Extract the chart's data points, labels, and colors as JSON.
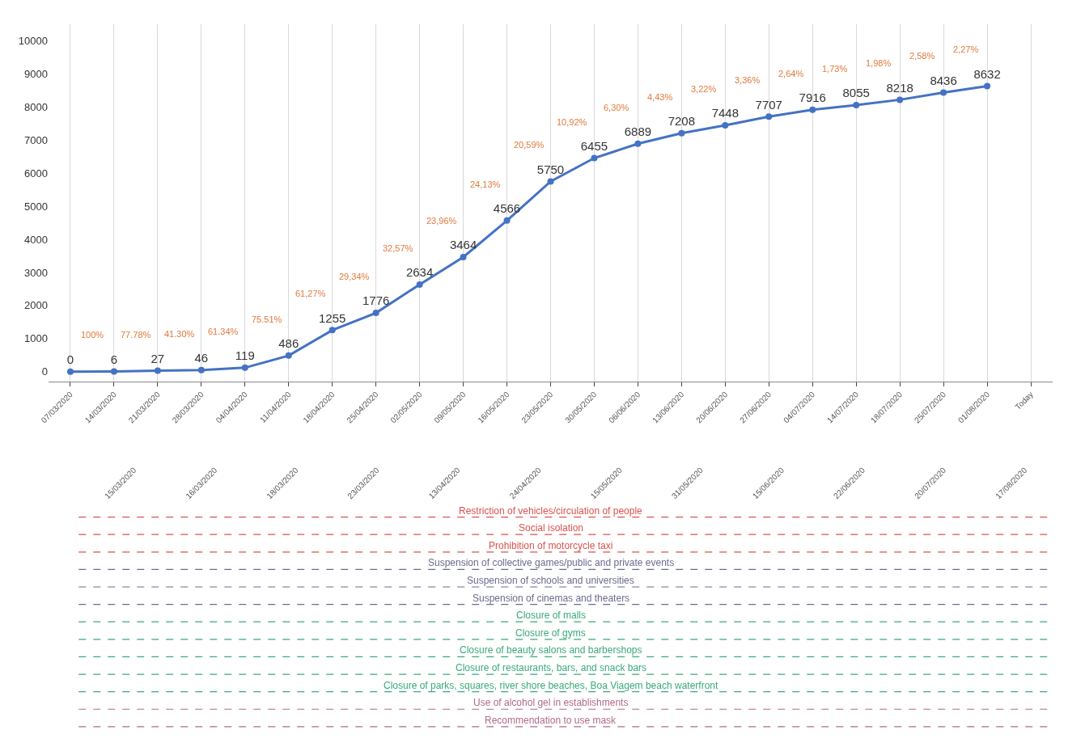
{
  "chart_data": [
    {
      "type": "line",
      "categories": [
        "07/03/2020",
        "14/03/2020",
        "21/03/2020",
        "28/03/2020",
        "04/04/2020",
        "11/04/2020",
        "18/04/2020",
        "25/04/2020",
        "02/05/2020",
        "09/05/2020",
        "16/05/2020",
        "23/05/2020",
        "30/05/2020",
        "06/06/2020",
        "13/06/2020",
        "20/06/2020",
        "27/06/2020",
        "04/07/2020",
        "14/07/2020",
        "18/07/2020",
        "25/07/2020",
        "01/08/2020",
        "Today"
      ],
      "series": [
        {
          "color": "#4472c4",
          "values": [
            0,
            6,
            27,
            46,
            119,
            486,
            1255,
            1776,
            2634,
            3464,
            4566,
            5750,
            6455,
            6889,
            7208,
            7448,
            7707,
            7916,
            8055,
            8218,
            8436,
            8632,
            null
          ]
        }
      ],
      "ylim": [
        -300,
        10500
      ],
      "yticks": [
        0,
        1000,
        2000,
        3000,
        4000,
        5000,
        6000,
        7000,
        8000,
        9000,
        10000
      ],
      "grid": "x",
      "marker": "circle",
      "data_labels": true,
      "legend": false,
      "annotations": [
        "100%",
        "77.78%",
        "41.30%",
        "61.34%",
        "75.51%",
        "61,27%",
        "29,34%",
        "32,57%",
        "23,96%",
        "24,13%",
        "20,59%",
        "10,92%",
        "6,30%",
        "4,43%",
        "3,22%",
        "3,36%",
        "2,64%",
        "1,73%",
        "1,98%",
        "2,58%",
        "2,27%"
      ]
    },
    {
      "type": "other",
      "categories": [
        "15/03/2020",
        "16/03/2020",
        "18/03/2020",
        "23/03/2020",
        "13/04/2020",
        "24/04/2020",
        "15/05/2020",
        "31/05/2020",
        "15/06/2020",
        "22/06/2020",
        "20/07/2020",
        "17/08/2020"
      ],
      "annotations": [
        "Restriction of vehicles/circulation of people",
        "Social isolation",
        "Prohibition of motorcycle taxi",
        "Suspension of collective games/public and private events",
        "Suspension of schools and universities",
        "Suspension of cinemas and theaters",
        "Closure of malls",
        "Closure of gyms",
        "Closure of beauty salons and barbershops",
        "Closure of restaurants, bars, and snack bars",
        "Closure of parks, squares, river shore beaches, Boa Viagem beach waterfront",
        "Use of alcohol gel in establishments",
        "Recommendation to use mask"
      ],
      "colors": [
        "#d9534f",
        "#d9534f",
        "#d9534f",
        "#6b6b8f",
        "#6b6b8f",
        "#6b6b8f",
        "#3aaa7a",
        "#3aaa7a",
        "#3aaa7a",
        "#3aaa7a",
        "#3aaa7a",
        "#b06a8a",
        "#b06a8a"
      ]
    }
  ]
}
